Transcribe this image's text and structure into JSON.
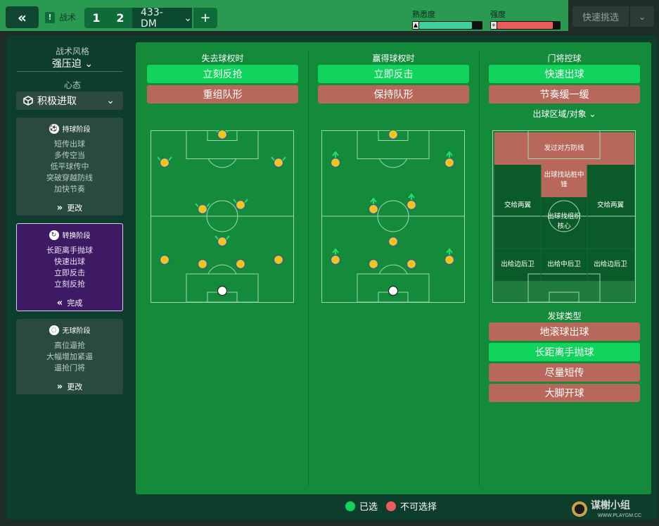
{
  "topbar": {
    "back_icon": "double-chevron-left-icon",
    "tactics_label": "战术",
    "tactic_numbers": [
      "1",
      "2"
    ],
    "formation": "433-DM",
    "add_label": "+",
    "familiarity": {
      "label": "熟悉度",
      "value": 0.85,
      "color": "#3fcfa0"
    },
    "intensity": {
      "label": "强度",
      "value": 0.9,
      "color": "#ef5a5a"
    },
    "quick_pick": "快速挑选"
  },
  "sidebar": {
    "style_title": "战术风格",
    "style_value": "强压迫",
    "mentality_title": "心态",
    "mentality_value": "积极进取",
    "phases": [
      {
        "title": "持球阶段",
        "items": [
          "短传出球",
          "多传空当",
          "低平球传中",
          "突破穿越防线",
          "加快节奏"
        ],
        "button": "更改"
      },
      {
        "title": "转换阶段",
        "items": [
          "长距离手抛球",
          "快速出球",
          "立即反击",
          "立刻反抢"
        ],
        "button": "完成"
      },
      {
        "title": "无球阶段",
        "items": [
          "高位逼抢",
          "大幅增加紧逼",
          "逼抢门将"
        ],
        "button": "更改"
      }
    ]
  },
  "lose_ball": {
    "title": "失去球权时",
    "options": [
      {
        "label": "立刻反抢",
        "state": "selected"
      },
      {
        "label": "重组队形",
        "state": "unavailable"
      }
    ]
  },
  "win_ball": {
    "title": "赢得球权时",
    "options": [
      {
        "label": "立即反击",
        "state": "selected"
      },
      {
        "label": "保持队形",
        "state": "unavailable"
      }
    ]
  },
  "goalkeeper": {
    "title": "门将控球",
    "options": [
      {
        "label": "快速出球",
        "state": "selected"
      },
      {
        "label": "节奏缓一缓",
        "state": "unavailable"
      }
    ],
    "zone_title": "出球区域/对象",
    "zones": {
      "top": "发过对方防线",
      "center_high": "出球找站桩中锋",
      "left_mid": "交给两翼",
      "right_mid": "交给两翼",
      "center_mid": "出球找组织核心",
      "left_low": "出给边后卫",
      "center_low": "出给中后卫",
      "right_low": "出给边后卫"
    },
    "distribution_title": "发球类型",
    "distribution": [
      {
        "label": "地滚球出球",
        "state": "unavailable"
      },
      {
        "label": "长距离手抛球",
        "state": "selected"
      },
      {
        "label": "尽量短传",
        "state": "unavailable"
      },
      {
        "label": "大脚开球",
        "state": "unavailable"
      }
    ]
  },
  "legend": {
    "selected": "已选",
    "unavailable": "不可选择",
    "selected_color": "#10d45c",
    "unavailable_color": "#ef5a5a"
  },
  "watermark": {
    "text": "谋榭小组",
    "url_text": "WWW.PLAYGM.CC"
  }
}
